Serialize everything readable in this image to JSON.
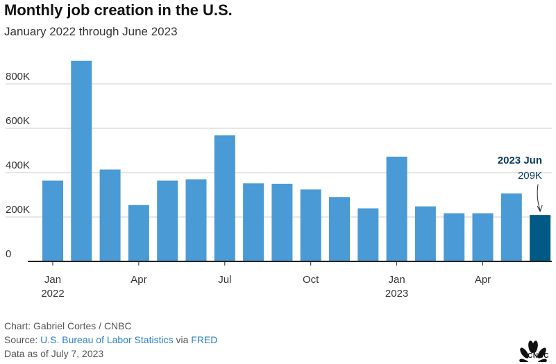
{
  "title": "Monthly job creation in the U.S.",
  "subtitle": "January 2022 through June 2023",
  "colors": {
    "bar": "#4a9ad6",
    "highlight": "#005a85",
    "grid": "#cccccc",
    "axis": "#222222",
    "annotation": "#0b3b66"
  },
  "chart_data": {
    "type": "bar",
    "categories": [
      "2022-01",
      "2022-02",
      "2022-03",
      "2022-04",
      "2022-05",
      "2022-06",
      "2022-07",
      "2022-08",
      "2022-09",
      "2022-10",
      "2022-11",
      "2022-12",
      "2023-01",
      "2023-02",
      "2023-03",
      "2023-04",
      "2023-05",
      "2023-06"
    ],
    "values": [
      364000,
      904000,
      414000,
      254000,
      364000,
      370000,
      568000,
      352000,
      350000,
      324000,
      290000,
      239000,
      472000,
      248000,
      217000,
      217000,
      306000,
      209000
    ],
    "highlight_index": 17,
    "ylim": [
      0,
      950000
    ],
    "yticks": [
      0,
      200000,
      400000,
      600000,
      800000
    ],
    "ytick_labels": [
      "0",
      "200K",
      "400K",
      "600K",
      "800K"
    ],
    "xtick_positions": [
      0,
      3,
      6,
      9,
      12,
      15
    ],
    "xtick_labels": [
      "Jan",
      "Apr",
      "Jul",
      "Oct",
      "Jan",
      "Apr"
    ],
    "xtick_year_labels": [
      "2022",
      "",
      "",
      "",
      "2023",
      ""
    ],
    "grid": true,
    "annotation": {
      "title": "2023 Jun",
      "value": "209K",
      "index": 17
    }
  },
  "footer": {
    "credit": "Chart: Gabriel Cortes / CNBC",
    "source_prefix": "Source:",
    "source_link1": "U.S. Bureau of Labor Statistics",
    "source_via": "via",
    "source_link2": "FRED",
    "data_date": "Data as of July 7, 2023"
  },
  "logo": {
    "icon": "peacock-icon",
    "text": "CNBC"
  }
}
